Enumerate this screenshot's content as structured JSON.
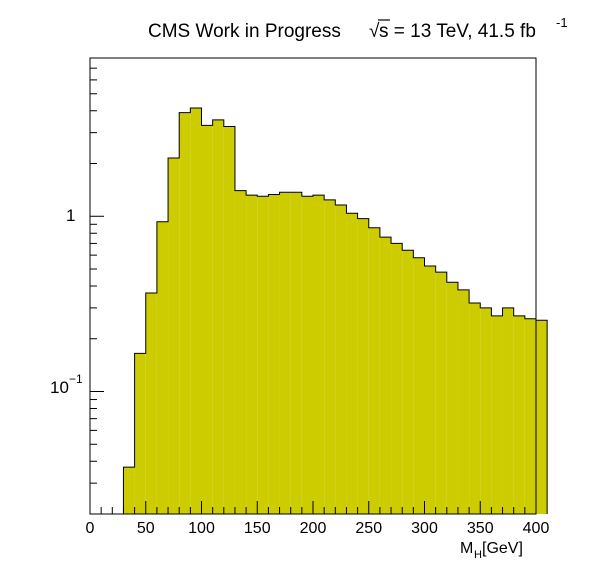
{
  "chart_data": {
    "type": "bar",
    "style": "filled-step-histogram",
    "title_parts": {
      "experiment": "CMS Work in Progress",
      "sqrt_symbol": "√",
      "energy": "s = 13 TeV, 41.5 fb",
      "lumi_exponent": "-1"
    },
    "xlabel_main": "M",
    "xlabel_sub": "H",
    "xlabel_unit": " [GeV]",
    "xlim": [
      0,
      400
    ],
    "ylim": [
      0.02,
      8
    ],
    "yscale": "log",
    "bin_width": 10,
    "bin_edges_start": 30,
    "x_ticks": [
      "0",
      "50",
      "100",
      "150",
      "200",
      "250",
      "300",
      "350",
      "400"
    ],
    "y_tick_1_label": "1",
    "y_tick_01_base": "10",
    "y_tick_01_exp": "−1",
    "fill_color": "#cccc00",
    "edge_color": "#000000",
    "values": [
      0.037,
      0.165,
      0.365,
      0.93,
      2.15,
      3.9,
      4.15,
      3.3,
      3.55,
      3.25,
      1.4,
      1.32,
      1.3,
      1.33,
      1.37,
      1.37,
      1.3,
      1.32,
      1.24,
      1.16,
      1.04,
      0.97,
      0.86,
      0.76,
      0.7,
      0.64,
      0.58,
      0.52,
      0.48,
      0.42,
      0.38,
      0.32,
      0.3,
      0.27,
      0.3,
      0.27,
      0.26,
      0.255
    ]
  }
}
